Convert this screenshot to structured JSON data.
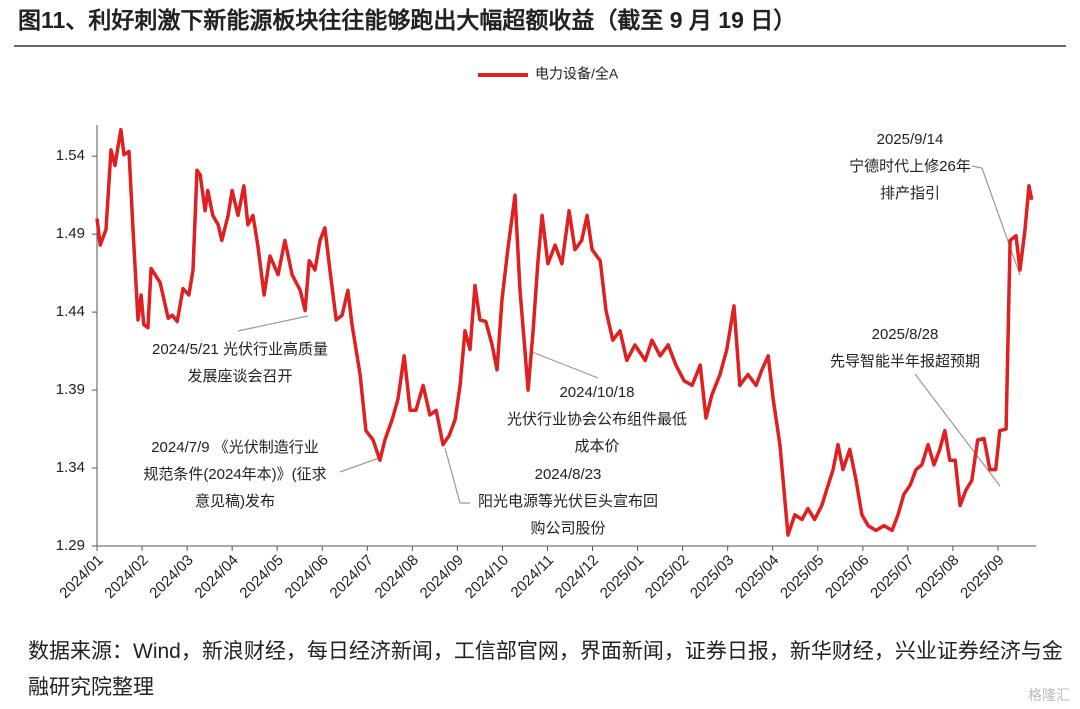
{
  "chart_data": {
    "type": "line",
    "title": "图11、利好刺激下新能源板块往往能够跑出大幅超额收益（截至 9 月 19 日）",
    "x": [
      0,
      0.07,
      0.2,
      0.31,
      0.4,
      0.47,
      0.53,
      0.6,
      0.71,
      0.8,
      0.91,
      0.98,
      1.04,
      1.13,
      1.2,
      1.4,
      1.58,
      1.67,
      1.78,
      1.91,
      2.04,
      2.13,
      2.22,
      2.29,
      2.4,
      2.46,
      2.57,
      2.69,
      2.77,
      2.91,
      3.0,
      3.13,
      3.26,
      3.35,
      3.46,
      3.57,
      3.71,
      3.84,
      4.02,
      4.17,
      4.33,
      4.51,
      4.62,
      4.71,
      4.84,
      4.95,
      5.06,
      5.17,
      5.31,
      5.44,
      5.57,
      5.66,
      5.84,
      5.97,
      6.13,
      6.28,
      6.39,
      6.55,
      6.68,
      6.82,
      6.95,
      7.08,
      7.24,
      7.39,
      7.53,
      7.68,
      7.82,
      7.95,
      8.06,
      8.17,
      8.28,
      8.39,
      8.5,
      8.63,
      8.77,
      8.88,
      8.99,
      9.12,
      9.28,
      9.39,
      9.48,
      9.57,
      9.68,
      9.79,
      9.88,
      10.01,
      10.17,
      10.32,
      10.48,
      10.61,
      10.76,
      10.88,
      10.99,
      11.17,
      11.3,
      11.45,
      11.61,
      11.76,
      11.94,
      12.17,
      12.32,
      12.5,
      12.68,
      12.85,
      13.03,
      13.21,
      13.39,
      13.52,
      13.65,
      13.83,
      13.98,
      14.14,
      14.27,
      14.45,
      14.63,
      14.76,
      14.9,
      15.01,
      15.16,
      15.34,
      15.49,
      15.65,
      15.78,
      15.93,
      16.09,
      16.23,
      16.34,
      16.45,
      16.56,
      16.71,
      16.85,
      16.98,
      17.12,
      17.29,
      17.47,
      17.65,
      17.78,
      17.91,
      18.05,
      18.18,
      18.31,
      18.45,
      18.58,
      18.71,
      18.82,
      18.93,
      19.05,
      19.16,
      19.29,
      19.42,
      19.55,
      19.69,
      19.82,
      19.95,
      20.04,
      20.18,
      20.27,
      20.4,
      20.49,
      20.6,
      20.69,
      20.75
    ],
    "series": [
      {
        "name": "电力设备/全A",
        "color": "#e02020",
        "values": [
          1.5,
          1.483,
          1.493,
          1.544,
          1.534,
          1.547,
          1.557,
          1.541,
          1.543,
          1.493,
          1.435,
          1.451,
          1.432,
          1.43,
          1.468,
          1.459,
          1.436,
          1.438,
          1.434,
          1.455,
          1.451,
          1.467,
          1.531,
          1.528,
          1.505,
          1.518,
          1.502,
          1.496,
          1.486,
          1.502,
          1.518,
          1.502,
          1.521,
          1.496,
          1.502,
          1.483,
          1.451,
          1.476,
          1.464,
          1.486,
          1.464,
          1.454,
          1.441,
          1.473,
          1.467,
          1.486,
          1.494,
          1.467,
          1.435,
          1.438,
          1.454,
          1.432,
          1.4,
          1.364,
          1.358,
          1.345,
          1.358,
          1.371,
          1.384,
          1.412,
          1.377,
          1.377,
          1.393,
          1.374,
          1.377,
          1.355,
          1.361,
          1.371,
          1.393,
          1.428,
          1.416,
          1.457,
          1.435,
          1.434,
          1.419,
          1.403,
          1.448,
          1.48,
          1.515,
          1.454,
          1.422,
          1.39,
          1.428,
          1.473,
          1.502,
          1.471,
          1.483,
          1.471,
          1.505,
          1.48,
          1.486,
          1.502,
          1.48,
          1.473,
          1.441,
          1.422,
          1.428,
          1.409,
          1.419,
          1.409,
          1.422,
          1.412,
          1.419,
          1.406,
          1.396,
          1.393,
          1.406,
          1.372,
          1.387,
          1.4,
          1.416,
          1.444,
          1.393,
          1.4,
          1.393,
          1.403,
          1.412,
          1.384,
          1.355,
          1.297,
          1.31,
          1.307,
          1.314,
          1.307,
          1.316,
          1.329,
          1.339,
          1.355,
          1.339,
          1.352,
          1.332,
          1.31,
          1.303,
          1.3,
          1.303,
          1.3,
          1.31,
          1.323,
          1.329,
          1.339,
          1.342,
          1.355,
          1.342,
          1.352,
          1.364,
          1.345,
          1.345,
          1.316,
          1.326,
          1.332,
          1.358,
          1.359,
          1.339,
          1.339,
          1.364,
          1.365,
          1.486,
          1.489,
          1.467,
          1.493,
          1.521,
          1.512
        ]
      }
    ],
    "xlim": [
      0,
      20.8
    ],
    "xticks": [
      {
        "value": 0,
        "label": "2024/01"
      },
      {
        "value": 1,
        "label": "2024/02"
      },
      {
        "value": 2,
        "label": "2024/03"
      },
      {
        "value": 3,
        "label": "2024/04"
      },
      {
        "value": 4,
        "label": "2024/05"
      },
      {
        "value": 5,
        "label": "2024/06"
      },
      {
        "value": 6,
        "label": "2024/07"
      },
      {
        "value": 7,
        "label": "2024/08"
      },
      {
        "value": 8,
        "label": "2024/09"
      },
      {
        "value": 9,
        "label": "2024/10"
      },
      {
        "value": 10,
        "label": "2024/11"
      },
      {
        "value": 11,
        "label": "2024/12"
      },
      {
        "value": 12,
        "label": "2025/01"
      },
      {
        "value": 13,
        "label": "2025/02"
      },
      {
        "value": 14,
        "label": "2025/03"
      },
      {
        "value": 15,
        "label": "2025/04"
      },
      {
        "value": 16,
        "label": "2025/05"
      },
      {
        "value": 17,
        "label": "2025/06"
      },
      {
        "value": 18,
        "label": "2025/07"
      },
      {
        "value": 19,
        "label": "2025/08"
      },
      {
        "value": 20,
        "label": "2025/09"
      }
    ],
    "ylim": [
      1.29,
      1.56
    ],
    "yticks": [
      1.29,
      1.34,
      1.39,
      1.44,
      1.49,
      1.54
    ],
    "grid": false,
    "legend": "top",
    "annotations": [
      {
        "lines": [
          "2025/9/14",
          "宁德时代上修26年",
          "排产指引"
        ]
      },
      {
        "lines": [
          "2025/8/28",
          "先导智能半年报超预期"
        ]
      },
      {
        "lines": [
          "2024/5/21 光伏行业高质量",
          "发展座谈会召开"
        ]
      },
      {
        "lines": [
          "2024/10/18",
          "光伏行业协会公布组件最低",
          "成本价"
        ]
      },
      {
        "lines": [
          "2024/7/9 《光伏制造行业",
          "规范条件(2024年本)》(征求",
          "意见稿)发布"
        ]
      },
      {
        "lines": [
          "2024/8/23",
          "阳光电源等光伏巨头宣布回",
          "购公司股份"
        ]
      }
    ]
  },
  "source": "数据来源：Wind，新浪财经，每日经济新闻，工信部官网，界面新闻，证券日报，新华财经，兴业证券经济与金融研究院整理",
  "watermark": "格隆汇"
}
